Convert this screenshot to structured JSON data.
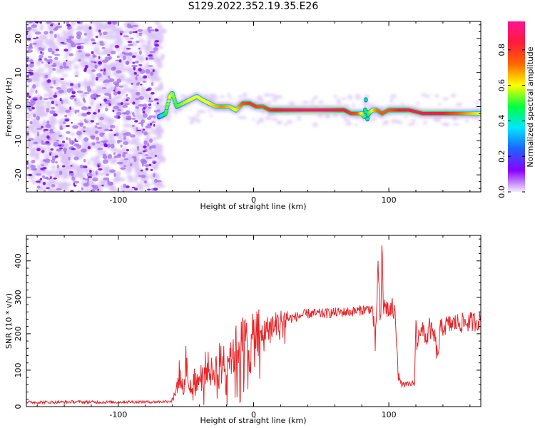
{
  "title": "S129.2022.352.19.35.E26",
  "colorbar": {
    "label": "Normalized spectral amplitude",
    "ticks": [
      "0.0",
      "0.2",
      "0.4",
      "0.6",
      "0.8"
    ],
    "tick_values": [
      0.0,
      0.2,
      0.4,
      0.6,
      0.8
    ],
    "range": [
      0,
      0.96
    ],
    "colors": [
      "#f3eefb",
      "#8a00ff",
      "#2060ff",
      "#00e5ff",
      "#00ff40",
      "#ffff00",
      "#ff6600",
      "#ff1a3c",
      "#ff1493"
    ]
  },
  "chart_data": [
    {
      "type": "heatmap",
      "name": "spectrogram",
      "xlabel": "Height of straight line (km)",
      "ylabel": "Frequency (Hz)",
      "xlim": [
        -168,
        168
      ],
      "ylim": [
        -25,
        25
      ],
      "xticks": [
        -100,
        0,
        100
      ],
      "xtick_labels": [
        "-100",
        "0",
        "100"
      ],
      "yticks": [
        -20,
        -10,
        0,
        10,
        20
      ],
      "ytick_labels": [
        "-20",
        "-10",
        "0",
        "10",
        "20"
      ],
      "noise_region_x": [
        -168,
        -70
      ],
      "ridge": {
        "x": [
          -70,
          -65,
          -62,
          -60,
          -57,
          -52,
          -47,
          -42,
          -38,
          -33,
          -28,
          -23,
          -18,
          -13,
          -8,
          -3,
          2,
          7,
          12,
          17,
          22,
          30,
          40,
          50,
          60,
          67,
          72,
          77,
          80,
          82,
          83,
          84,
          85,
          88,
          91,
          95,
          100,
          105,
          110,
          115,
          125,
          140,
          155,
          168
        ],
        "y": [
          -3,
          -2,
          3,
          4,
          0,
          1,
          2,
          3,
          2,
          1,
          0,
          0,
          0,
          -1,
          1,
          1,
          0,
          0,
          -1,
          -1,
          -1,
          -1,
          -1,
          -1,
          -1,
          -1,
          -2,
          -2,
          -2,
          -3,
          2,
          -4,
          -2,
          -1,
          -1,
          -2,
          -1,
          -1,
          -1,
          -1,
          -2,
          -2,
          -2,
          -2
        ],
        "amplitude": [
          0.3,
          0.5,
          0.6,
          0.55,
          0.5,
          0.55,
          0.6,
          0.6,
          0.6,
          0.6,
          0.65,
          0.7,
          0.65,
          0.6,
          0.75,
          0.8,
          0.8,
          0.75,
          0.8,
          0.85,
          0.9,
          0.92,
          0.95,
          0.95,
          0.9,
          0.85,
          0.8,
          0.75,
          0.6,
          0.5,
          0.45,
          0.45,
          0.5,
          0.6,
          0.7,
          0.75,
          0.75,
          0.8,
          0.85,
          0.9,
          0.9,
          0.85,
          0.7,
          0.6
        ]
      }
    },
    {
      "type": "line",
      "name": "snr",
      "xlabel": "Height of straight line (km)",
      "ylabel": "SNR (10 * v/v)",
      "xlim": [
        -168,
        168
      ],
      "ylim": [
        0,
        470
      ],
      "xticks": [
        -100,
        0,
        100
      ],
      "xtick_labels": [
        "-100",
        "0",
        "100"
      ],
      "yticks": [
        0,
        100,
        200,
        300,
        400
      ],
      "ytick_labels": [
        "0",
        "100",
        "200",
        "300",
        "400"
      ],
      "color": "#e8262a",
      "x": [
        -168,
        -150,
        -130,
        -110,
        -90,
        -70,
        -62,
        -58,
        -55,
        -52,
        -50,
        -48,
        -45,
        -40,
        -35,
        -30,
        -25,
        -20,
        -15,
        -10,
        -5,
        -2,
        0,
        2,
        5,
        10,
        15,
        20,
        25,
        30,
        40,
        50,
        60,
        70,
        75,
        80,
        85,
        88,
        90,
        92,
        94,
        95,
        96,
        98,
        100,
        103,
        105,
        107,
        108,
        110,
        113,
        116,
        119,
        120,
        121,
        122,
        124,
        126,
        128,
        130,
        132,
        134,
        136,
        138,
        140,
        145,
        150,
        155,
        160,
        165,
        168
      ],
      "y": [
        12,
        12,
        13,
        12,
        13,
        13,
        15,
        30,
        90,
        50,
        120,
        60,
        70,
        80,
        110,
        90,
        125,
        140,
        150,
        170,
        180,
        150,
        190,
        200,
        195,
        215,
        225,
        235,
        240,
        245,
        255,
        255,
        258,
        260,
        262,
        265,
        268,
        270,
        160,
        390,
        200,
        470,
        270,
        275,
        260,
        270,
        240,
        100,
        70,
        60,
        60,
        62,
        65,
        235,
        150,
        220,
        200,
        210,
        180,
        220,
        200,
        190,
        130,
        210,
        220,
        225,
        230,
        230,
        232,
        235,
        235
      ]
    }
  ]
}
